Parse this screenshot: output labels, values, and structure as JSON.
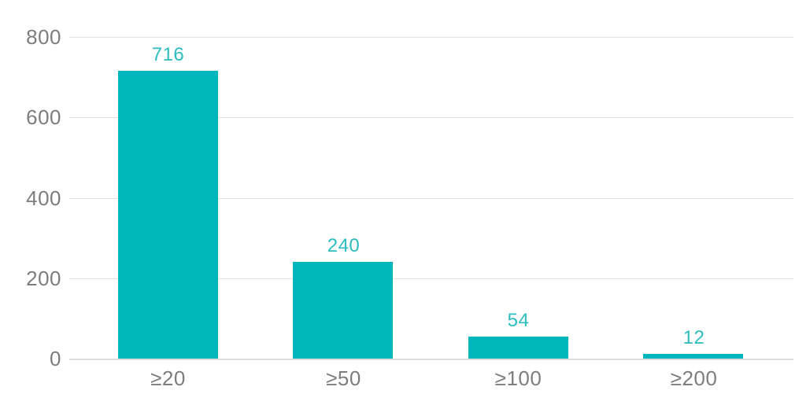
{
  "chart_data": {
    "type": "bar",
    "categories": [
      "≥20",
      "≥50",
      "≥100",
      "≥200"
    ],
    "values": [
      716,
      240,
      54,
      12
    ],
    "value_labels": [
      "716",
      "240",
      "54",
      "12"
    ],
    "title": "",
    "xlabel": "",
    "ylabel": "",
    "ylim": [
      0,
      800
    ],
    "yticks": [
      0,
      200,
      400,
      600,
      800
    ],
    "ytick_labels": [
      "0",
      "200",
      "400",
      "600",
      "800"
    ],
    "grid": true,
    "legend_position": "none",
    "colors": {
      "bar": "#00b6bd",
      "value_label": "#2dbdc0",
      "axis_text": "#7d7d7d",
      "gridline": "#e1e1e1",
      "baseline": "#dcdcdc",
      "background": "#ffffff"
    }
  }
}
